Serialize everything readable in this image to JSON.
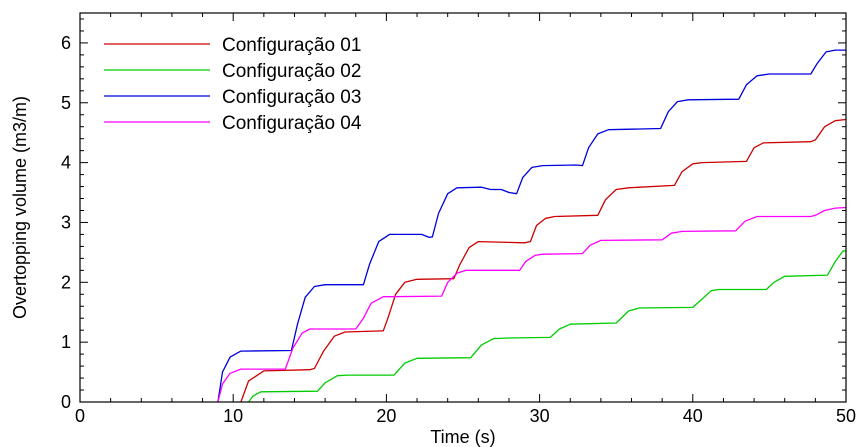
{
  "chart_data": {
    "type": "line",
    "title": "",
    "xlabel": "Time (s)",
    "ylabel": "Overtopping volume (m3/m)",
    "xlim": [
      0,
      50
    ],
    "ylim": [
      0,
      6.5
    ],
    "xticks": [
      0,
      10,
      20,
      30,
      40,
      50
    ],
    "yticks": [
      0,
      1,
      2,
      3,
      4,
      5,
      6
    ],
    "grid": false,
    "legend_position": "top-left",
    "series": [
      {
        "name": "Configuração 01",
        "color": "#cc0000",
        "points": [
          [
            10.5,
            0
          ],
          [
            11.0,
            0.35
          ],
          [
            12.0,
            0.52
          ],
          [
            15.0,
            0.54
          ],
          [
            15.3,
            0.56
          ],
          [
            15.9,
            0.85
          ],
          [
            16.6,
            1.1
          ],
          [
            17.3,
            1.17
          ],
          [
            19.8,
            1.19
          ],
          [
            20.1,
            1.4
          ],
          [
            20.6,
            1.8
          ],
          [
            21.2,
            2.0
          ],
          [
            22.0,
            2.05
          ],
          [
            24.4,
            2.06
          ],
          [
            24.8,
            2.3
          ],
          [
            25.4,
            2.58
          ],
          [
            26.0,
            2.68
          ],
          [
            29.0,
            2.66
          ],
          [
            29.4,
            2.68
          ],
          [
            29.8,
            2.95
          ],
          [
            30.4,
            3.07
          ],
          [
            31.0,
            3.1
          ],
          [
            33.8,
            3.12
          ],
          [
            34.3,
            3.38
          ],
          [
            35.0,
            3.55
          ],
          [
            35.8,
            3.58
          ],
          [
            38.8,
            3.62
          ],
          [
            39.3,
            3.85
          ],
          [
            40.0,
            3.98
          ],
          [
            40.6,
            4.0
          ],
          [
            43.5,
            4.02
          ],
          [
            44.0,
            4.25
          ],
          [
            44.6,
            4.33
          ],
          [
            47.7,
            4.35
          ],
          [
            48.0,
            4.38
          ],
          [
            48.6,
            4.6
          ],
          [
            49.3,
            4.7
          ],
          [
            50,
            4.72
          ]
        ]
      },
      {
        "name": "Configuração 02",
        "color": "#00cc00",
        "points": [
          [
            11.0,
            0
          ],
          [
            11.3,
            0.1
          ],
          [
            11.8,
            0.17
          ],
          [
            15.5,
            0.18
          ],
          [
            16.0,
            0.32
          ],
          [
            16.8,
            0.44
          ],
          [
            17.5,
            0.45
          ],
          [
            20.5,
            0.45
          ],
          [
            21.2,
            0.65
          ],
          [
            22.0,
            0.73
          ],
          [
            25.5,
            0.74
          ],
          [
            26.2,
            0.95
          ],
          [
            27.0,
            1.06
          ],
          [
            28.0,
            1.07
          ],
          [
            30.7,
            1.08
          ],
          [
            31.3,
            1.22
          ],
          [
            32.0,
            1.3
          ],
          [
            35.0,
            1.32
          ],
          [
            35.8,
            1.52
          ],
          [
            36.5,
            1.57
          ],
          [
            40.0,
            1.58
          ],
          [
            40.6,
            1.72
          ],
          [
            41.2,
            1.86
          ],
          [
            41.7,
            1.88
          ],
          [
            44.8,
            1.88
          ],
          [
            45.3,
            2.0
          ],
          [
            46.0,
            2.1
          ],
          [
            48.8,
            2.12
          ],
          [
            49.3,
            2.35
          ],
          [
            49.8,
            2.52
          ],
          [
            50,
            2.53
          ]
        ]
      },
      {
        "name": "Configuração 03",
        "color": "#0000dd",
        "points": [
          [
            9.0,
            0
          ],
          [
            9.3,
            0.5
          ],
          [
            9.8,
            0.75
          ],
          [
            10.5,
            0.85
          ],
          [
            13.8,
            0.86
          ],
          [
            14.2,
            1.3
          ],
          [
            14.7,
            1.75
          ],
          [
            15.3,
            1.93
          ],
          [
            16.0,
            1.96
          ],
          [
            18.5,
            1.96
          ],
          [
            18.9,
            2.3
          ],
          [
            19.5,
            2.68
          ],
          [
            20.2,
            2.8
          ],
          [
            22.3,
            2.8
          ],
          [
            22.8,
            2.75
          ],
          [
            23.0,
            2.76
          ],
          [
            23.4,
            3.15
          ],
          [
            24.0,
            3.48
          ],
          [
            24.6,
            3.58
          ],
          [
            26.2,
            3.59
          ],
          [
            26.8,
            3.55
          ],
          [
            27.5,
            3.55
          ],
          [
            28.0,
            3.5
          ],
          [
            28.5,
            3.48
          ],
          [
            28.9,
            3.75
          ],
          [
            29.5,
            3.92
          ],
          [
            30.2,
            3.95
          ],
          [
            32.4,
            3.96
          ],
          [
            32.8,
            3.95
          ],
          [
            33.2,
            4.25
          ],
          [
            33.8,
            4.48
          ],
          [
            34.5,
            4.55
          ],
          [
            37.9,
            4.57
          ],
          [
            38.4,
            4.85
          ],
          [
            39.0,
            5.02
          ],
          [
            39.7,
            5.05
          ],
          [
            43.0,
            5.06
          ],
          [
            43.5,
            5.3
          ],
          [
            44.2,
            5.45
          ],
          [
            45.0,
            5.48
          ],
          [
            47.7,
            5.48
          ],
          [
            48.1,
            5.65
          ],
          [
            48.7,
            5.85
          ],
          [
            49.3,
            5.88
          ],
          [
            50,
            5.88
          ]
        ]
      },
      {
        "name": "Configuração 04",
        "color": "#ff00ff",
        "points": [
          [
            9.0,
            0
          ],
          [
            9.3,
            0.3
          ],
          [
            9.8,
            0.48
          ],
          [
            10.5,
            0.55
          ],
          [
            13.4,
            0.55
          ],
          [
            13.9,
            0.9
          ],
          [
            14.5,
            1.15
          ],
          [
            15.0,
            1.22
          ],
          [
            18.0,
            1.22
          ],
          [
            18.5,
            1.4
          ],
          [
            19.0,
            1.65
          ],
          [
            19.8,
            1.76
          ],
          [
            20.3,
            1.76
          ],
          [
            23.6,
            1.77
          ],
          [
            24.0,
            2.0
          ],
          [
            24.6,
            2.15
          ],
          [
            25.2,
            2.2
          ],
          [
            28.7,
            2.2
          ],
          [
            29.1,
            2.35
          ],
          [
            29.7,
            2.45
          ],
          [
            30.2,
            2.47
          ],
          [
            32.8,
            2.48
          ],
          [
            33.3,
            2.62
          ],
          [
            34.0,
            2.7
          ],
          [
            38.0,
            2.71
          ],
          [
            38.6,
            2.82
          ],
          [
            39.3,
            2.85
          ],
          [
            42.8,
            2.86
          ],
          [
            43.4,
            3.02
          ],
          [
            44.2,
            3.1
          ],
          [
            47.7,
            3.1
          ],
          [
            48.0,
            3.12
          ],
          [
            48.6,
            3.2
          ],
          [
            49.3,
            3.24
          ],
          [
            50,
            3.25
          ]
        ]
      }
    ]
  }
}
